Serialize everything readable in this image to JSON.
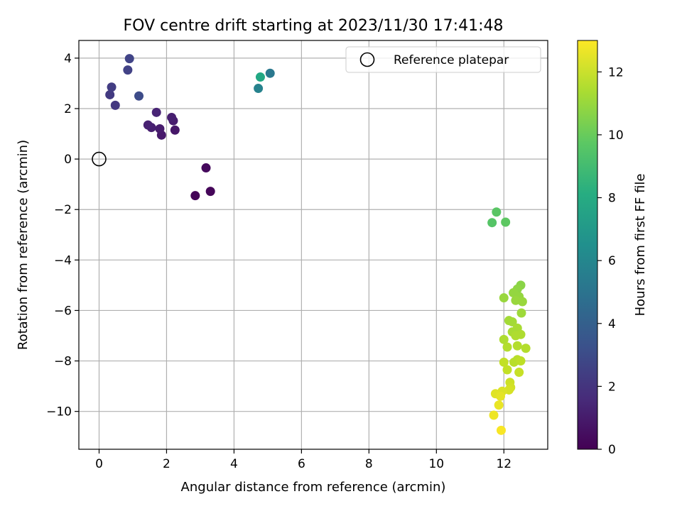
{
  "chart_data": {
    "type": "scatter",
    "title": "FOV centre drift starting at 2023/11/30 17:41:48",
    "xlabel": "Angular distance from reference (arcmin)",
    "ylabel": "Rotation from reference (arcmin)",
    "xlim": [
      -0.6,
      13.3
    ],
    "ylim": [
      -11.5,
      4.7
    ],
    "xticks": [
      0,
      2,
      4,
      6,
      8,
      10,
      12
    ],
    "yticks": [
      4,
      2,
      0,
      -2,
      -4,
      -6,
      -8,
      -10
    ],
    "xtick_labels": [
      "0",
      "2",
      "4",
      "6",
      "8",
      "10",
      "12"
    ],
    "ytick_labels": [
      "4",
      "2",
      "0",
      "−2",
      "−4",
      "−6",
      "−8",
      "−10"
    ],
    "grid": true,
    "legend": {
      "position": "top-right",
      "entries": [
        "Reference platepar"
      ]
    },
    "reference_point": {
      "x": 0,
      "y": 0
    },
    "colorbar": {
      "label": "Hours from first FF file",
      "min": 0,
      "max": 13,
      "ticks": [
        0,
        2,
        4,
        6,
        8,
        10,
        12
      ],
      "tick_labels": [
        "0",
        "2",
        "4",
        "6",
        "8",
        "10",
        "12"
      ],
      "colormap": "viridis"
    },
    "colors": {
      "grid": "#b0b0b0",
      "reference_marker": "#000000"
    },
    "points": [
      {
        "x": 2.85,
        "y": -1.45,
        "h": 0.1
      },
      {
        "x": 3.3,
        "y": -1.28,
        "h": 0.2
      },
      {
        "x": 3.17,
        "y": -0.35,
        "h": 0.3
      },
      {
        "x": 2.25,
        "y": 1.15,
        "h": 0.8
      },
      {
        "x": 1.85,
        "y": 0.95,
        "h": 0.9
      },
      {
        "x": 1.8,
        "y": 1.2,
        "h": 1.0
      },
      {
        "x": 2.2,
        "y": 1.52,
        "h": 1.0
      },
      {
        "x": 2.15,
        "y": 1.65,
        "h": 1.1
      },
      {
        "x": 1.55,
        "y": 1.25,
        "h": 1.1
      },
      {
        "x": 1.45,
        "y": 1.35,
        "h": 1.2
      },
      {
        "x": 1.7,
        "y": 1.85,
        "h": 1.3
      },
      {
        "x": 0.48,
        "y": 2.13,
        "h": 2.1
      },
      {
        "x": 0.32,
        "y": 2.55,
        "h": 2.2
      },
      {
        "x": 0.37,
        "y": 2.85,
        "h": 2.3
      },
      {
        "x": 0.85,
        "y": 3.53,
        "h": 2.5
      },
      {
        "x": 0.9,
        "y": 3.98,
        "h": 2.6
      },
      {
        "x": 1.18,
        "y": 2.5,
        "h": 3.0
      },
      {
        "x": 5.07,
        "y": 3.4,
        "h": 5.2
      },
      {
        "x": 4.72,
        "y": 2.8,
        "h": 5.7
      },
      {
        "x": 4.78,
        "y": 3.25,
        "h": 7.8
      },
      {
        "x": 11.65,
        "y": -2.52,
        "h": 9.5
      },
      {
        "x": 11.78,
        "y": -2.1,
        "h": 9.6
      },
      {
        "x": 12.05,
        "y": -2.5,
        "h": 9.7
      },
      {
        "x": 12.5,
        "y": -5.0,
        "h": 10.7
      },
      {
        "x": 12.4,
        "y": -5.15,
        "h": 10.8
      },
      {
        "x": 12.28,
        "y": -5.3,
        "h": 10.9
      },
      {
        "x": 12.45,
        "y": -5.45,
        "h": 10.9
      },
      {
        "x": 12.0,
        "y": -5.5,
        "h": 11.0
      },
      {
        "x": 12.35,
        "y": -5.6,
        "h": 11.0
      },
      {
        "x": 12.55,
        "y": -5.65,
        "h": 11.0
      },
      {
        "x": 12.52,
        "y": -6.1,
        "h": 11.1
      },
      {
        "x": 12.15,
        "y": -6.4,
        "h": 11.2
      },
      {
        "x": 12.25,
        "y": -6.45,
        "h": 11.2
      },
      {
        "x": 12.4,
        "y": -6.7,
        "h": 11.3
      },
      {
        "x": 12.25,
        "y": -6.85,
        "h": 11.3
      },
      {
        "x": 12.5,
        "y": -6.95,
        "h": 11.4
      },
      {
        "x": 12.35,
        "y": -7.0,
        "h": 11.4
      },
      {
        "x": 12.0,
        "y": -7.15,
        "h": 11.4
      },
      {
        "x": 12.4,
        "y": -7.4,
        "h": 11.5
      },
      {
        "x": 12.1,
        "y": -7.45,
        "h": 11.5
      },
      {
        "x": 12.65,
        "y": -7.5,
        "h": 11.5
      },
      {
        "x": 12.4,
        "y": -7.95,
        "h": 11.6
      },
      {
        "x": 12.3,
        "y": -8.05,
        "h": 11.6
      },
      {
        "x": 12.5,
        "y": -8.0,
        "h": 11.7
      },
      {
        "x": 12.0,
        "y": -8.05,
        "h": 11.8
      },
      {
        "x": 12.1,
        "y": -8.35,
        "h": 11.8
      },
      {
        "x": 12.45,
        "y": -8.45,
        "h": 11.9
      },
      {
        "x": 12.18,
        "y": -8.85,
        "h": 12.0
      },
      {
        "x": 12.2,
        "y": -9.05,
        "h": 12.1
      },
      {
        "x": 12.15,
        "y": -9.15,
        "h": 12.2
      },
      {
        "x": 11.95,
        "y": -9.2,
        "h": 12.3
      },
      {
        "x": 11.75,
        "y": -9.3,
        "h": 12.4
      },
      {
        "x": 11.9,
        "y": -9.4,
        "h": 12.5
      },
      {
        "x": 11.85,
        "y": -9.75,
        "h": 12.6
      },
      {
        "x": 11.7,
        "y": -10.15,
        "h": 12.7
      },
      {
        "x": 11.92,
        "y": -10.75,
        "h": 12.9
      }
    ]
  }
}
